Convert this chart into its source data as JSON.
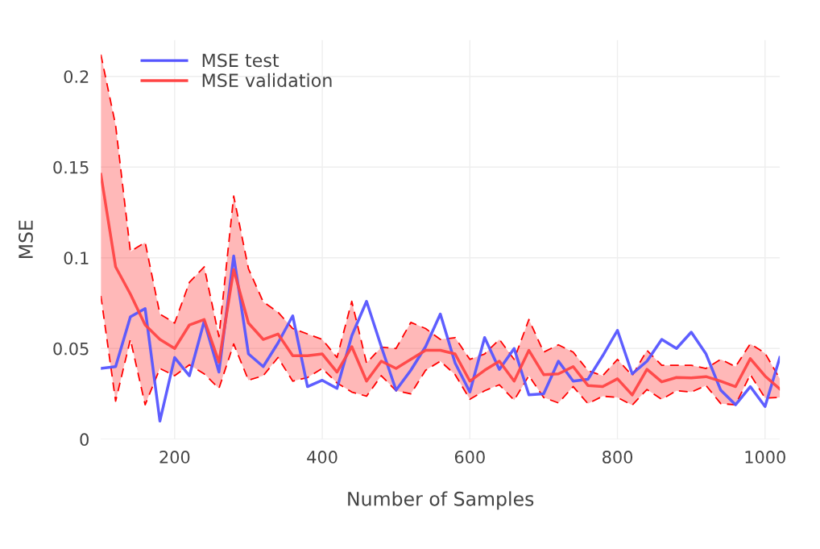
{
  "chart_data": {
    "type": "line",
    "xlabel": "Number of Samples",
    "ylabel": "MSE",
    "x": [
      100,
      120,
      140,
      160,
      180,
      200,
      220,
      240,
      260,
      280,
      300,
      320,
      340,
      360,
      380,
      400,
      420,
      440,
      460,
      480,
      500,
      520,
      540,
      560,
      580,
      600,
      620,
      640,
      660,
      680,
      700,
      720,
      740,
      760,
      780,
      800,
      820,
      840,
      860,
      880,
      900,
      920,
      940,
      960,
      980,
      1000,
      1020
    ],
    "xlim": [
      100,
      1020
    ],
    "ylim": [
      0,
      0.22
    ],
    "xticks": [
      200,
      400,
      600,
      800,
      1000
    ],
    "yticks": [
      0,
      0.05,
      0.1,
      0.15,
      0.2
    ],
    "grid": true,
    "legend": "top left",
    "series": [
      {
        "name": "MSE test",
        "color": "#5555ff",
        "values": [
          0.039,
          0.04,
          0.0675,
          0.072,
          0.01,
          0.045,
          0.035,
          0.065,
          0.037,
          0.101,
          0.047,
          0.04,
          0.053,
          0.068,
          0.029,
          0.0325,
          0.028,
          0.057,
          0.076,
          0.051,
          0.027,
          0.038,
          0.051,
          0.069,
          0.042,
          0.026,
          0.056,
          0.0385,
          0.05,
          0.0245,
          0.025,
          0.043,
          0.032,
          0.033,
          0.046,
          0.06,
          0.036,
          0.043,
          0.055,
          0.05,
          0.059,
          0.047,
          0.027,
          0.019,
          0.029,
          0.018,
          0.045
        ]
      },
      {
        "name": "MSE validation",
        "color": "#ff4444",
        "values": [
          0.146,
          0.095,
          0.08,
          0.063,
          0.055,
          0.05,
          0.063,
          0.066,
          0.0425,
          0.0935,
          0.064,
          0.055,
          0.058,
          0.046,
          0.046,
          0.047,
          0.037,
          0.051,
          0.032,
          0.043,
          0.039,
          0.044,
          0.049,
          0.049,
          0.047,
          0.032,
          0.038,
          0.043,
          0.032,
          0.049,
          0.0356,
          0.036,
          0.04,
          0.0296,
          0.029,
          0.0333,
          0.0244,
          0.0385,
          0.0316,
          0.034,
          0.0338,
          0.0345,
          0.032,
          0.029,
          0.0444,
          0.0348,
          0.0277
        ],
        "upper": [
          0.212,
          0.173,
          0.1035,
          0.1085,
          0.069,
          0.064,
          0.0865,
          0.095,
          0.0565,
          0.134,
          0.094,
          0.0757,
          0.07,
          0.061,
          0.058,
          0.055,
          0.045,
          0.076,
          0.042,
          0.0507,
          0.05,
          0.0644,
          0.061,
          0.055,
          0.056,
          0.044,
          0.047,
          0.055,
          0.044,
          0.066,
          0.048,
          0.052,
          0.048,
          0.0378,
          0.035,
          0.044,
          0.035,
          0.049,
          0.0407,
          0.0407,
          0.0407,
          0.039,
          0.044,
          0.04,
          0.0526,
          0.0474,
          0.0333
        ],
        "lower": [
          0.079,
          0.021,
          0.055,
          0.019,
          0.039,
          0.035,
          0.041,
          0.036,
          0.028,
          0.0525,
          0.0325,
          0.035,
          0.045,
          0.032,
          0.034,
          0.039,
          0.031,
          0.026,
          0.0237,
          0.035,
          0.0267,
          0.025,
          0.038,
          0.043,
          0.0356,
          0.022,
          0.0267,
          0.03,
          0.0215,
          0.035,
          0.023,
          0.02,
          0.029,
          0.0196,
          0.0237,
          0.023,
          0.0188,
          0.0274,
          0.022,
          0.0267,
          0.026,
          0.0296,
          0.0196,
          0.019,
          0.0356,
          0.0227,
          0.023
        ]
      },
      {
        "color": "#ff0000",
        "line_style": "dashed",
        "values": [
          0.212,
          0.173,
          0.1035,
          0.1085,
          0.069,
          0.064,
          0.0865,
          0.095,
          0.0565,
          0.134,
          0.094,
          0.0757,
          0.07,
          0.061,
          0.058,
          0.055,
          0.045,
          0.076,
          0.042,
          0.0507,
          0.05,
          0.0644,
          0.061,
          0.055,
          0.056,
          0.044,
          0.047,
          0.055,
          0.044,
          0.066,
          0.048,
          0.052,
          0.048,
          0.0378,
          0.035,
          0.044,
          0.035,
          0.049,
          0.0407,
          0.0407,
          0.0407,
          0.039,
          0.044,
          0.04,
          0.0526,
          0.0474,
          0.0333
        ]
      },
      {
        "color": "#ff0000",
        "line_style": "dashed",
        "values": [
          0.079,
          0.021,
          0.055,
          0.019,
          0.039,
          0.035,
          0.041,
          0.036,
          0.028,
          0.0525,
          0.0325,
          0.035,
          0.045,
          0.032,
          0.034,
          0.039,
          0.031,
          0.026,
          0.0237,
          0.035,
          0.0267,
          0.025,
          0.038,
          0.043,
          0.0356,
          0.022,
          0.0267,
          0.03,
          0.0215,
          0.035,
          0.023,
          0.02,
          0.029,
          0.0196,
          0.0237,
          0.023,
          0.0188,
          0.0274,
          0.022,
          0.0267,
          0.026,
          0.0296,
          0.0196,
          0.019,
          0.0356,
          0.0227,
          0.023
        ]
      }
    ]
  }
}
